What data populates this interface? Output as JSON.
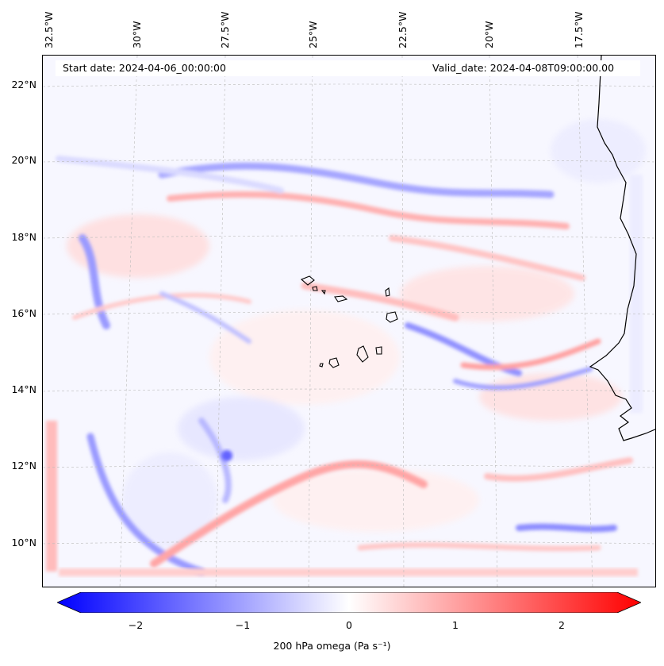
{
  "map": {
    "title_left": "Start date: 2024-04-06_00:00:00",
    "title_right": "Valid_date: 2024-04-08T09:00:00.00",
    "lon_labels": [
      "32.5°W",
      "30°W",
      "27.5°W",
      "25°W",
      "22.5°W",
      "20°W",
      "17.5°W"
    ],
    "lat_labels": [
      "22°N",
      "20°N",
      "18°N",
      "16°N",
      "14°N",
      "12°N",
      "10°N"
    ],
    "colors": {
      "neg": "#0000ff",
      "zero": "#ffffff",
      "pos": "#ff0000",
      "coast": "#000000",
      "grid": "#bbbbbb"
    }
  },
  "colorbar": {
    "ticks": [
      "−2",
      "−1",
      "0",
      "1",
      "2"
    ],
    "label": "200 hPa omega (Pa s⁻¹)",
    "range": [
      -2.5,
      2.5
    ]
  }
}
